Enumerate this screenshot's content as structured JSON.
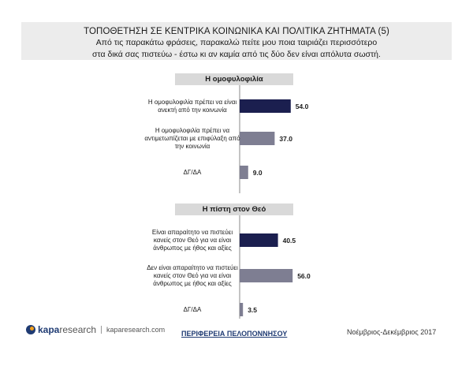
{
  "header": {
    "title": "ΤΟΠΟΘΕΤΗΣΗ ΣΕ ΚΕΝΤΡΙΚΑ ΚΟΙΝΩΝΙΚΑ ΚΑΙ ΠΟΛΙΤΙΚΑ ΖΗΤΗΜΑΤΑ (5)",
    "subtitle_line1": "Από τις παρακάτω φράσεις, παρακαλώ πείτε μου ποια ταιριάζει περισσότερο",
    "subtitle_line2": "στα δικά σας πιστεύω - έστω κι αν καμία από τις δύο δεν είναι απόλυτα σωστή."
  },
  "colors": {
    "dark_navy": "#1b1f4f",
    "gray": "#7e7e92",
    "section_bg": "#d9d9d9",
    "header_bg": "#ececec"
  },
  "chart_data": [
    {
      "type": "bar",
      "title": "Η ομοφυλοφιλία",
      "categories": [
        [
          "Η ομοφυλοφιλία πρέπει να είναι",
          "ανεκτή από την κοινωνία"
        ],
        [
          "Η ομοφυλοφιλία πρέπει να",
          "αντιμετωπίζεται με επιφύλαξη από",
          "την κοινωνία"
        ],
        [
          "ΔΓ/ΔΑ"
        ]
      ],
      "values": [
        54.0,
        37.0,
        9.0
      ],
      "value_labels": [
        "54.0",
        "37.0",
        "9.0"
      ],
      "bar_colors": [
        "#1b1f4f",
        "#7e7e92",
        "#7e7e92"
      ]
    },
    {
      "type": "bar",
      "title": "Η πίστη στον Θεό",
      "categories": [
        [
          "Είναι απαραίτητο να πιστεύει",
          "κανείς στον Θεό για να είναι",
          "άνθρωπος με ήθος και αξίες"
        ],
        [
          "Δεν είναι απαραίτητο να πιστεύει",
          "κανείς στον Θεό για να είναι",
          "άνθρωπος με ήθος και αξίες"
        ],
        [
          "ΔΓ/ΔΑ"
        ]
      ],
      "values": [
        40.5,
        56.0,
        3.5
      ],
      "value_labels": [
        "40.5",
        "56.0",
        "3.5"
      ],
      "bar_colors": [
        "#1b1f4f",
        "#7e7e92",
        "#7e7e92"
      ]
    }
  ],
  "footer": {
    "logo_bold": "kapa",
    "logo_light": "research",
    "url": "kaparesearch.com",
    "region": "ΠΕΡΙΦΕΡΕΙΑ ΠΕΛΟΠΟΝΝΗΣΟΥ",
    "date": "Νοέμβριος-Δεκέμβριος 2017"
  }
}
